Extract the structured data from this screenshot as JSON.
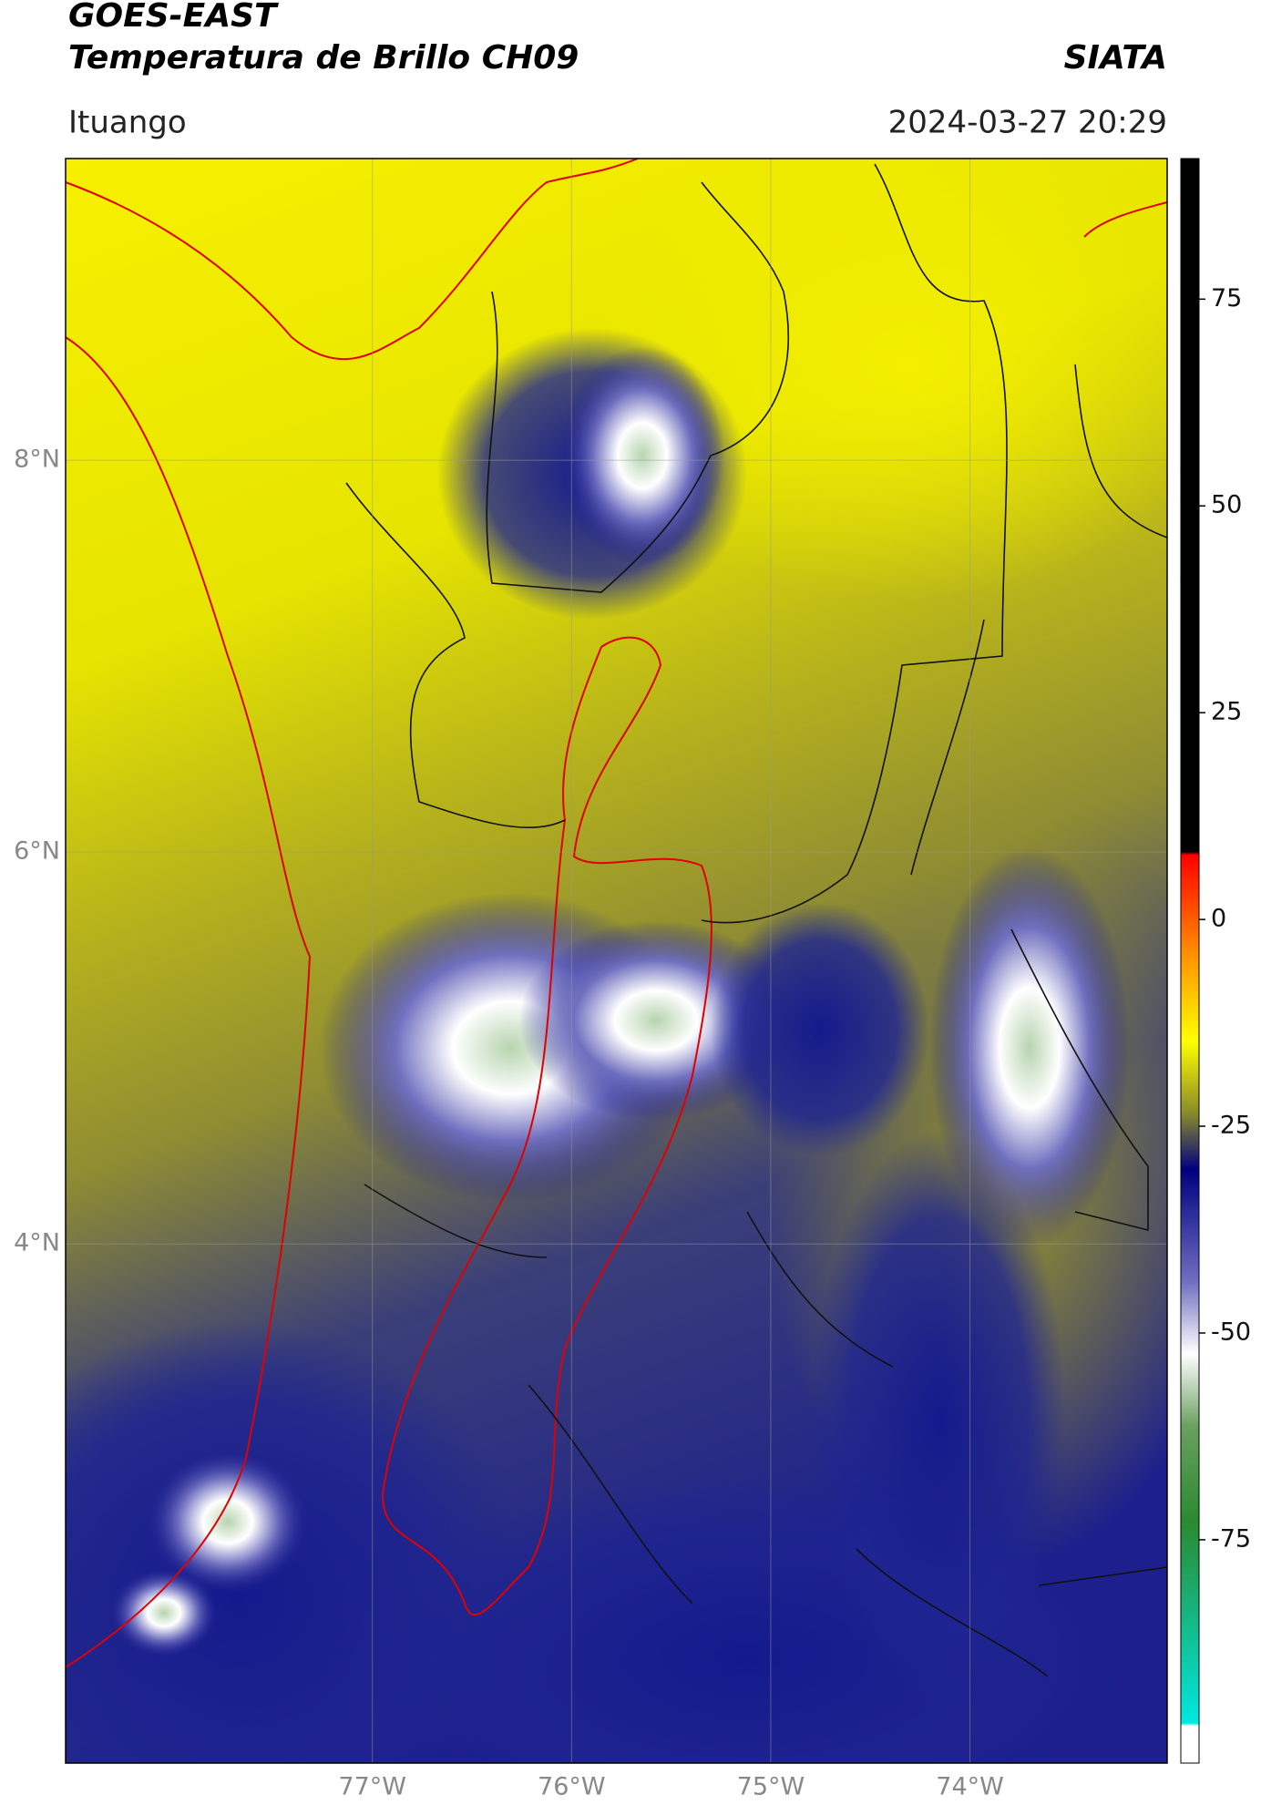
{
  "header": {
    "satellite": "GOES-EAST",
    "product": "Temperatura de Brillo CH09",
    "source": "SIATA",
    "location": "Ituango",
    "datetime": "2024-03-27 20:29"
  },
  "map": {
    "type": "map",
    "xlim": [
      -78.54,
      -73.01
    ],
    "ylim": [
      1.35,
      9.54
    ],
    "xticks": [
      {
        "value": -77,
        "label": "77°W"
      },
      {
        "value": -76,
        "label": "76°W"
      },
      {
        "value": -75,
        "label": "75°W"
      },
      {
        "value": -74,
        "label": "74°W"
      }
    ],
    "yticks": [
      {
        "value": 8,
        "label": "8°N"
      },
      {
        "value": 6,
        "label": "6°N"
      },
      {
        "value": 4,
        "label": "4°N"
      }
    ],
    "grid": true
  },
  "colorbar": {
    "clim": [
      -102,
      92
    ],
    "ticks": [
      75,
      50,
      25,
      0,
      -25,
      -50,
      -75
    ]
  }
}
